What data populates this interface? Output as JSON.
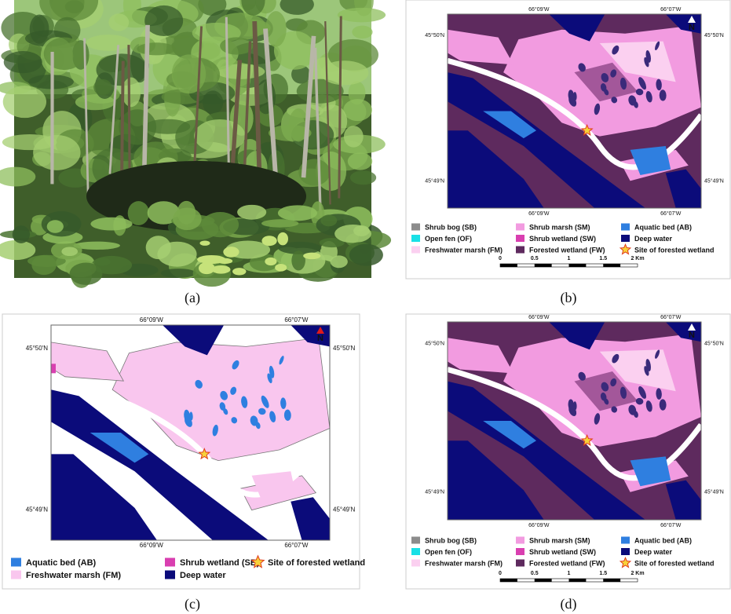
{
  "panels": [
    {
      "label": "(a)"
    },
    {
      "label": "(b)",
      "top_lon_labels": [
        "66°09'W",
        "66°07'W"
      ],
      "bottom_lon_labels": [
        "66°09'W",
        "66°07'W"
      ],
      "left_lat_labels": [
        "45°50'N",
        "45°49'N"
      ],
      "right_lat_labels": [
        "45°50'N",
        "45°49'N"
      ],
      "north": "N",
      "legend": [
        {
          "label": "Shrub bog (SB)",
          "color": "#8c8c8c"
        },
        {
          "label": "Open fen (OF)",
          "color": "#19e0e6"
        },
        {
          "label": "Freshwater marsh (FM)",
          "color": "#fbd0f0"
        },
        {
          "label": "Shrub marsh (SM)",
          "color": "#f29be0"
        },
        {
          "label": "Shrub wetland (SW)",
          "color": "#d93fb0"
        },
        {
          "label": "Forested wetland (FW)",
          "color": "#5e2a5e"
        },
        {
          "label": "Aquatic bed (AB)",
          "color": "#2f7fe0"
        },
        {
          "label": "Deep water",
          "color": "#0b0b7a"
        },
        {
          "label": "Site of forested wetland",
          "color": "#f7d23a",
          "marker": "star"
        }
      ],
      "scale_labels": [
        "0",
        "0.5",
        "1",
        "1.5",
        "2 Km"
      ]
    },
    {
      "label": "(c)",
      "top_lon_labels": [
        "66°09'W",
        "66°07'W"
      ],
      "bottom_lon_labels": [
        "66°09'W",
        "66°07'W"
      ],
      "left_lat_labels": [
        "45°50'N",
        "45°49'N"
      ],
      "right_lat_labels": [
        "45°50'N",
        "45°49'N"
      ],
      "north": "N",
      "legend": [
        {
          "label": "Aquatic bed (AB)",
          "color": "#2f7fe0"
        },
        {
          "label": "Freshwater marsh (FM)",
          "color": "#f9c6ee"
        },
        {
          "label": "Shrub wetland (SB)",
          "color": "#d93fb0"
        },
        {
          "label": "Deep water",
          "color": "#0b0b7a"
        },
        {
          "label": "Site of forested wetland",
          "color": "#f7d23a",
          "marker": "star"
        }
      ]
    },
    {
      "label": "(d)",
      "top_lon_labels": [
        "66°09'W",
        "66°07'W"
      ],
      "bottom_lon_labels": [
        "66°09'W",
        "66°07'W"
      ],
      "left_lat_labels": [
        "45°50'N",
        "45°49'N"
      ],
      "right_lat_labels": [
        "45°50'N",
        "45°49'N"
      ],
      "north": "N",
      "legend": [
        {
          "label": "Shrub bog (SB)",
          "color": "#8c8c8c"
        },
        {
          "label": "Open fen (OF)",
          "color": "#19e0e6"
        },
        {
          "label": "Freshwater marsh (FM)",
          "color": "#fbd0f0"
        },
        {
          "label": "Shrub marsh (SM)",
          "color": "#f29be0"
        },
        {
          "label": "Shrub wetland (SW)",
          "color": "#d93fb0"
        },
        {
          "label": "Forested wetland (FW)",
          "color": "#5e2a5e"
        },
        {
          "label": "Aquatic bed (AB)",
          "color": "#2f7fe0"
        },
        {
          "label": "Deep water",
          "color": "#0b0b7a"
        },
        {
          "label": "Site of forested wetland",
          "color": "#f7d23a",
          "marker": "star"
        }
      ],
      "scale_labels": [
        "0",
        "0.5",
        "1",
        "1.5",
        "2 Km"
      ]
    }
  ]
}
